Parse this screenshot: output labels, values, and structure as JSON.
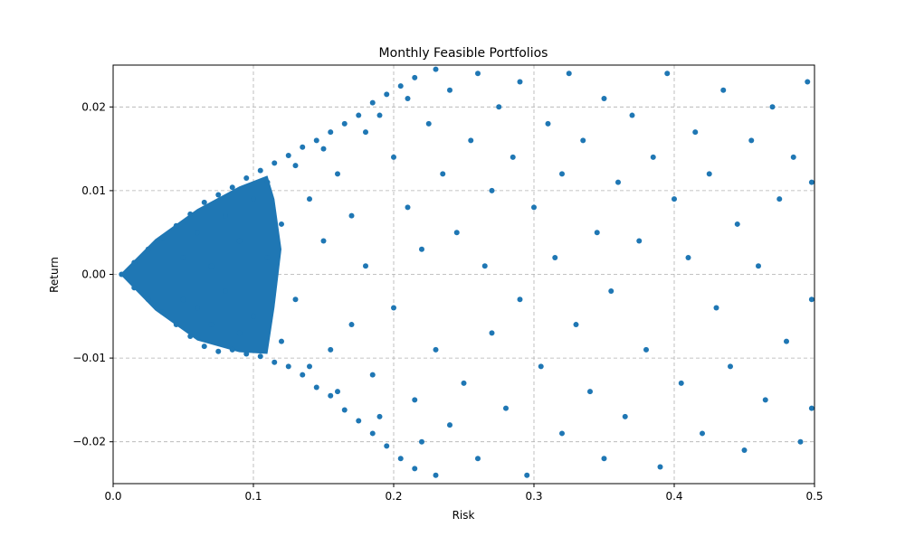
{
  "chart_data": {
    "type": "scatter",
    "title": "Monthly Feasible Portfolios",
    "xlabel": "Risk",
    "ylabel": "Return",
    "xlim": [
      0,
      0.5
    ],
    "ylim": [
      -0.025,
      0.025
    ],
    "xticks": [
      "0.0",
      "0.1",
      "0.2",
      "0.3",
      "0.4",
      "0.5"
    ],
    "yticks": [
      "−0.02",
      "−0.01",
      "0.00",
      "0.01",
      "0.02"
    ],
    "grid": true,
    "marker_color": "#1f77b4",
    "series": [
      {
        "points": [
          [
            0.006,
            0.0
          ],
          [
            0.015,
            0.0014
          ],
          [
            0.015,
            -0.0016
          ],
          [
            0.025,
            0.003
          ],
          [
            0.025,
            -0.003
          ],
          [
            0.035,
            0.0043
          ],
          [
            0.035,
            -0.0045
          ],
          [
            0.045,
            0.0058
          ],
          [
            0.045,
            -0.006
          ],
          [
            0.055,
            0.0072
          ],
          [
            0.055,
            -0.0074
          ],
          [
            0.065,
            0.0086
          ],
          [
            0.065,
            -0.0086
          ],
          [
            0.075,
            0.0095
          ],
          [
            0.075,
            -0.0092
          ],
          [
            0.085,
            0.0104
          ],
          [
            0.085,
            -0.009
          ],
          [
            0.095,
            0.0115
          ],
          [
            0.095,
            -0.0095
          ],
          [
            0.105,
            0.0124
          ],
          [
            0.105,
            -0.0098
          ],
          [
            0.115,
            0.0133
          ],
          [
            0.115,
            -0.0105
          ],
          [
            0.125,
            0.0142
          ],
          [
            0.125,
            -0.011
          ],
          [
            0.135,
            0.0152
          ],
          [
            0.135,
            -0.012
          ],
          [
            0.145,
            0.016
          ],
          [
            0.145,
            -0.0135
          ],
          [
            0.155,
            0.017
          ],
          [
            0.155,
            -0.0145
          ],
          [
            0.165,
            0.018
          ],
          [
            0.165,
            -0.0162
          ],
          [
            0.175,
            0.019
          ],
          [
            0.175,
            -0.0175
          ],
          [
            0.185,
            0.0205
          ],
          [
            0.185,
            -0.019
          ],
          [
            0.195,
            0.0215
          ],
          [
            0.195,
            -0.0205
          ],
          [
            0.205,
            0.0225
          ],
          [
            0.205,
            -0.022
          ],
          [
            0.215,
            0.0235
          ],
          [
            0.215,
            -0.0232
          ],
          [
            0.23,
            0.0245
          ],
          [
            0.23,
            -0.024
          ],
          [
            0.05,
            0.002
          ],
          [
            0.05,
            -0.003
          ],
          [
            0.06,
            0.005
          ],
          [
            0.06,
            -0.004
          ],
          [
            0.07,
            0.001
          ],
          [
            0.07,
            -0.006
          ],
          [
            0.08,
            0.007
          ],
          [
            0.08,
            -0.002
          ],
          [
            0.09,
            0.004
          ],
          [
            0.09,
            -0.007
          ],
          [
            0.1,
            0.009
          ],
          [
            0.1,
            -0.005
          ],
          [
            0.11,
            0.011
          ],
          [
            0.11,
            0.002
          ],
          [
            0.12,
            -0.008
          ],
          [
            0.12,
            0.006
          ],
          [
            0.13,
            0.013
          ],
          [
            0.13,
            -0.003
          ],
          [
            0.14,
            0.009
          ],
          [
            0.14,
            -0.011
          ],
          [
            0.15,
            0.015
          ],
          [
            0.15,
            0.004
          ],
          [
            0.155,
            -0.009
          ],
          [
            0.16,
            0.012
          ],
          [
            0.16,
            -0.014
          ],
          [
            0.17,
            0.007
          ],
          [
            0.17,
            -0.006
          ],
          [
            0.18,
            0.017
          ],
          [
            0.18,
            0.001
          ],
          [
            0.185,
            -0.012
          ],
          [
            0.19,
            0.019
          ],
          [
            0.19,
            -0.017
          ],
          [
            0.2,
            0.014
          ],
          [
            0.2,
            -0.004
          ],
          [
            0.21,
            0.021
          ],
          [
            0.21,
            0.008
          ],
          [
            0.215,
            -0.015
          ],
          [
            0.22,
            0.003
          ],
          [
            0.22,
            -0.02
          ],
          [
            0.225,
            0.018
          ],
          [
            0.23,
            -0.009
          ],
          [
            0.235,
            0.012
          ],
          [
            0.24,
            0.022
          ],
          [
            0.24,
            -0.018
          ],
          [
            0.245,
            0.005
          ],
          [
            0.25,
            -0.013
          ],
          [
            0.255,
            0.016
          ],
          [
            0.26,
            -0.022
          ],
          [
            0.26,
            0.024
          ],
          [
            0.265,
            0.001
          ],
          [
            0.27,
            0.01
          ],
          [
            0.27,
            -0.007
          ],
          [
            0.275,
            0.02
          ],
          [
            0.28,
            -0.016
          ],
          [
            0.285,
            0.014
          ],
          [
            0.29,
            -0.003
          ],
          [
            0.29,
            0.023
          ],
          [
            0.295,
            -0.024
          ],
          [
            0.3,
            0.008
          ],
          [
            0.305,
            -0.011
          ],
          [
            0.31,
            0.018
          ],
          [
            0.315,
            0.002
          ],
          [
            0.32,
            -0.019
          ],
          [
            0.32,
            0.012
          ],
          [
            0.325,
            0.024
          ],
          [
            0.33,
            -0.006
          ],
          [
            0.335,
            0.016
          ],
          [
            0.34,
            -0.014
          ],
          [
            0.345,
            0.005
          ],
          [
            0.35,
            0.021
          ],
          [
            0.35,
            -0.022
          ],
          [
            0.355,
            -0.002
          ],
          [
            0.36,
            0.011
          ],
          [
            0.365,
            -0.017
          ],
          [
            0.37,
            0.019
          ],
          [
            0.375,
            0.004
          ],
          [
            0.38,
            -0.009
          ],
          [
            0.385,
            0.014
          ],
          [
            0.39,
            -0.023
          ],
          [
            0.395,
            0.024
          ],
          [
            0.4,
            0.009
          ],
          [
            0.405,
            -0.013
          ],
          [
            0.41,
            0.002
          ],
          [
            0.415,
            0.017
          ],
          [
            0.42,
            -0.019
          ],
          [
            0.425,
            0.012
          ],
          [
            0.43,
            -0.004
          ],
          [
            0.435,
            0.022
          ],
          [
            0.44,
            -0.011
          ],
          [
            0.445,
            0.006
          ],
          [
            0.45,
            -0.021
          ],
          [
            0.455,
            0.016
          ],
          [
            0.46,
            0.001
          ],
          [
            0.465,
            -0.015
          ],
          [
            0.47,
            0.02
          ],
          [
            0.475,
            0.009
          ],
          [
            0.48,
            -0.008
          ],
          [
            0.485,
            0.014
          ],
          [
            0.49,
            -0.02
          ],
          [
            0.495,
            0.023
          ],
          [
            0.498,
            -0.003
          ],
          [
            0.498,
            0.011
          ],
          [
            0.498,
            -0.016
          ]
        ]
      }
    ]
  }
}
